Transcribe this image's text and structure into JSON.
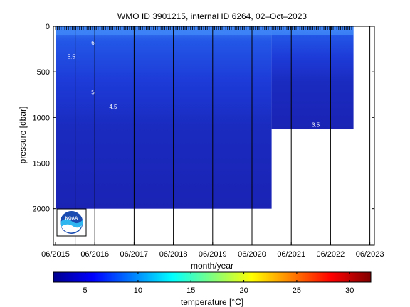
{
  "chart_data": {
    "type": "heatmap",
    "title": "WMO ID 3901215, internal ID 6264, 02–Oct–2023",
    "xlabel": "month/year",
    "ylabel": "pressure [dbar]",
    "x_ticks": [
      "06/2015",
      "06/2016",
      "06/2017",
      "06/2018",
      "06/2019",
      "06/2020",
      "06/2021",
      "06/2022",
      "06/2023"
    ],
    "y_ticks": [
      0,
      500,
      1000,
      1500,
      2000
    ],
    "ylim": [
      2400,
      0
    ],
    "y_reversed": true,
    "profile_lines_x": [
      "Dec 2015",
      "Jun 2016",
      "Jun 2017",
      "Jun 2018",
      "Jun 2019",
      "Jun 2020",
      "Jun 2021",
      "Jun 2022",
      "Jun 2023"
    ],
    "coverage": [
      {
        "from": "Jun 2015",
        "to": "Dec 2020",
        "max_pressure": 2000
      },
      {
        "from": "Dec 2020",
        "to": "Jan 2023",
        "max_pressure": 1130
      }
    ],
    "isotherms": [
      {
        "label": "6",
        "pressure": 180
      },
      {
        "label": "5.5",
        "pressure": 330
      },
      {
        "label": "5",
        "pressure": 720
      },
      {
        "label": "4.5",
        "pressure": 880
      },
      {
        "label": "",
        "pressure": 1000
      },
      {
        "label": "3.5",
        "pressure": 1080
      },
      {
        "label": "",
        "pressure": 1300
      },
      {
        "label": "",
        "pressure": 1760
      }
    ],
    "isotherm_labels_shown": [
      "6",
      "5.5",
      "5",
      "4.5",
      "3.5"
    ],
    "colorbar": {
      "label": "temperature [°C]",
      "range": [
        2,
        32
      ],
      "ticks": [
        5,
        10,
        15,
        20,
        25,
        30
      ],
      "colormap": "jet"
    },
    "logo": "NOAA",
    "colors": {
      "deep": "#1a23b4",
      "mid": "#1d3bd8",
      "warm": "#2a6cf2"
    }
  }
}
